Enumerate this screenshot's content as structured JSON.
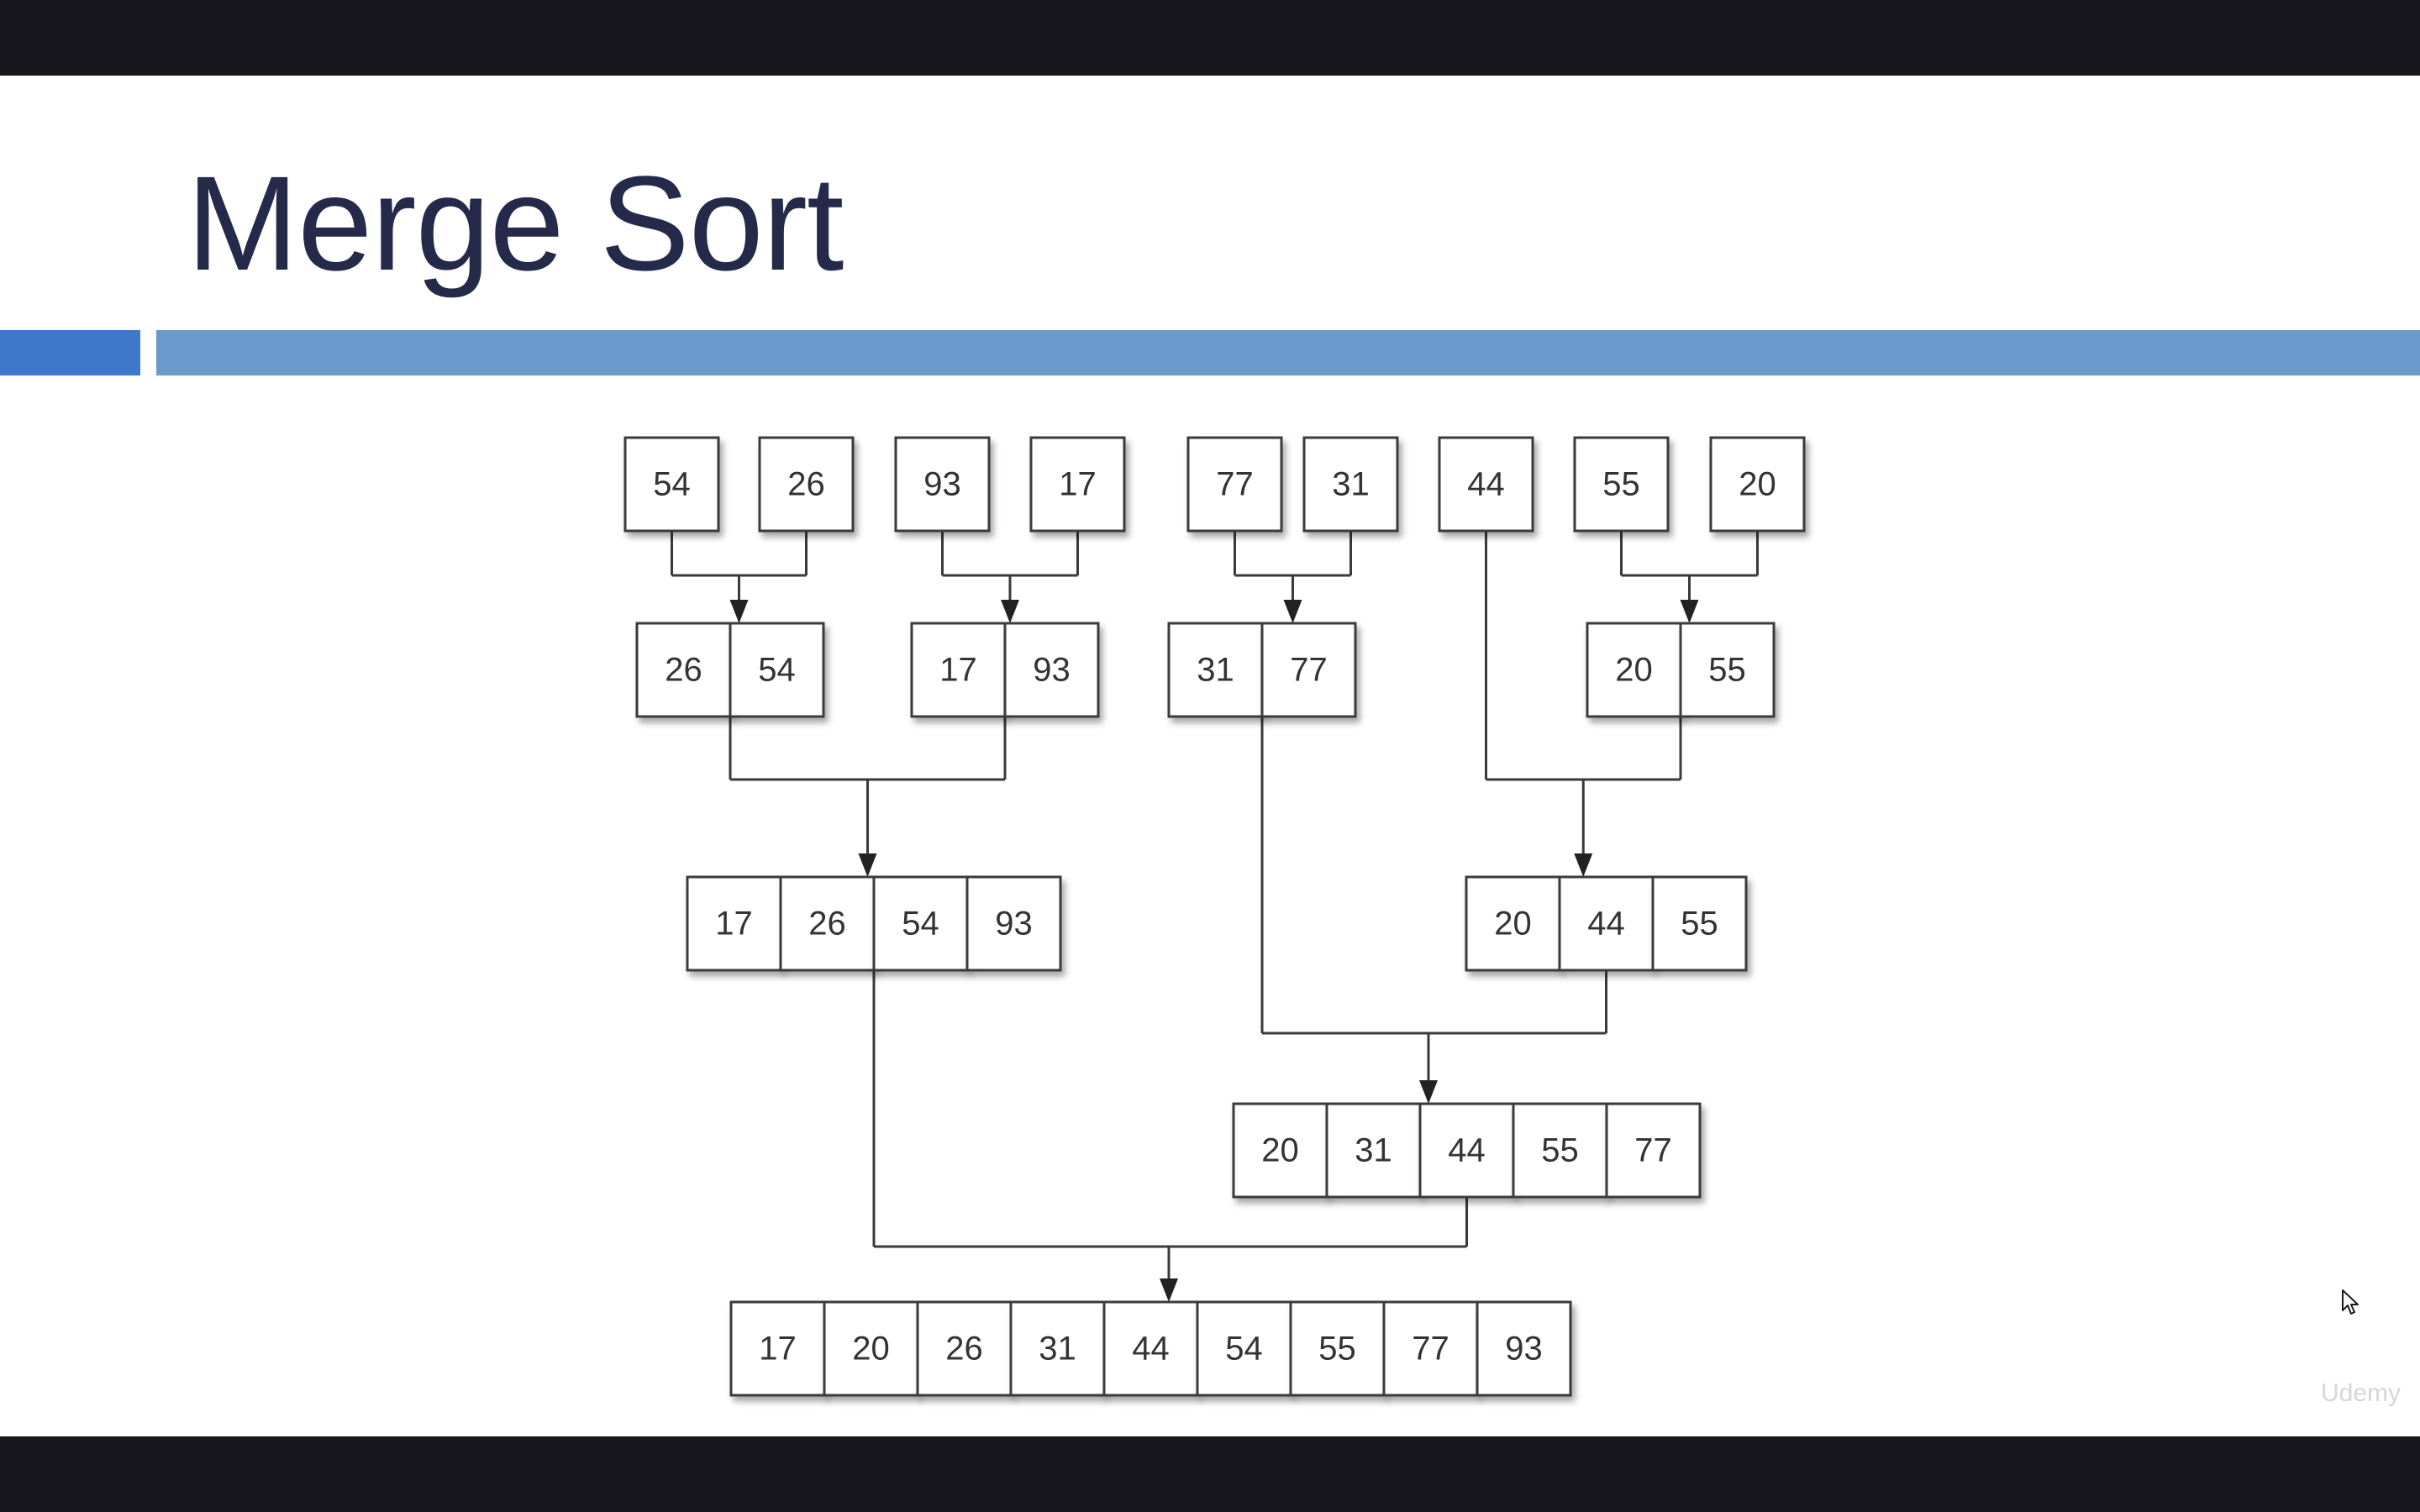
{
  "slide": {
    "title": "Merge Sort",
    "accent_color": "#3d78cb",
    "bar_color": "#6a9acc",
    "title_color": "#252a4a"
  },
  "diagram": {
    "levels": [
      {
        "name": "level-1",
        "groups": [
          [
            54
          ],
          [
            26
          ],
          [
            93
          ],
          [
            17
          ],
          [
            77
          ],
          [
            31
          ],
          [
            44
          ],
          [
            55
          ],
          [
            20
          ]
        ]
      },
      {
        "name": "level-2",
        "groups": [
          [
            26,
            54
          ],
          [
            17,
            93
          ],
          [
            31,
            77
          ],
          [
            20,
            55
          ]
        ]
      },
      {
        "name": "level-3",
        "groups": [
          [
            17,
            26,
            54,
            93
          ],
          [
            20,
            44,
            55
          ]
        ]
      },
      {
        "name": "level-4",
        "groups": [
          [
            20,
            31,
            44,
            55,
            77
          ]
        ]
      },
      {
        "name": "level-5",
        "groups": [
          [
            17,
            20,
            26,
            31,
            44,
            54,
            55,
            77,
            93
          ]
        ]
      }
    ]
  },
  "watermark": {
    "text": "Udemy"
  },
  "icons": {
    "cursor": "mouse-pointer-icon"
  }
}
